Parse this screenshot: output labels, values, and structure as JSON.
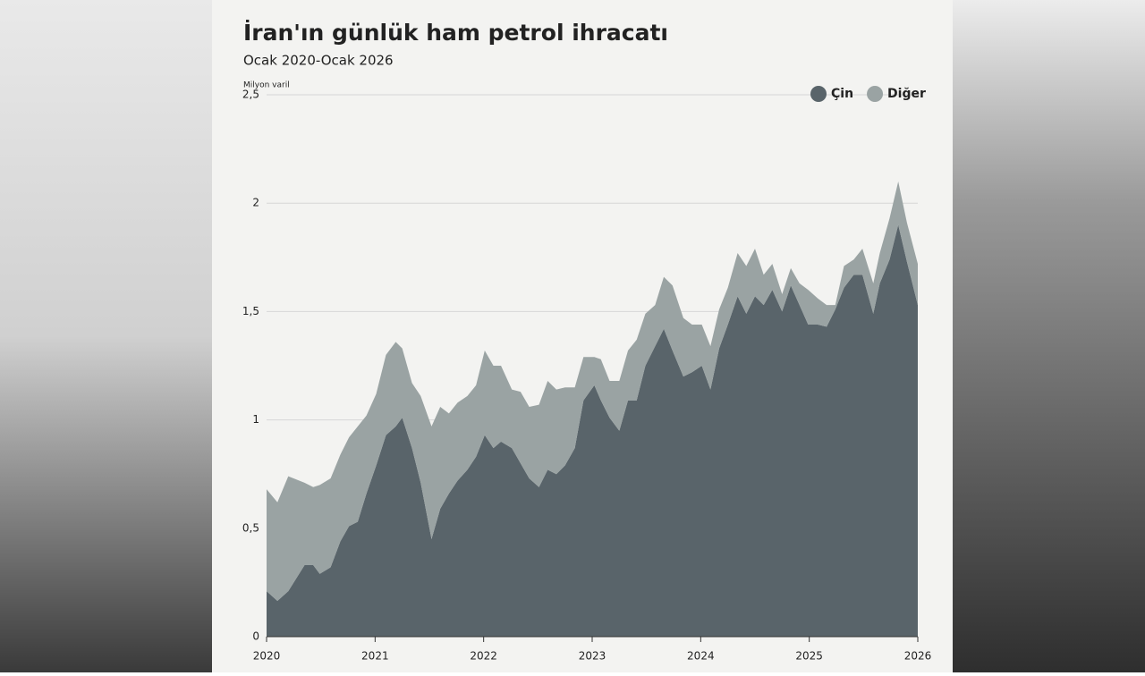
{
  "chart_data": {
    "type": "stacked-area",
    "title": "İran'ın günlük ham petrol ihracatı",
    "subtitle": "Ocak 2020-Ocak 2026",
    "y_label": "Milyon varil",
    "x": [
      2020.0,
      2020.1,
      2020.2,
      2020.35,
      2020.43,
      2020.49,
      2020.59,
      2020.68,
      2020.76,
      2020.84,
      2020.92,
      2021.01,
      2021.1,
      2021.19,
      2021.25,
      2021.34,
      2021.42,
      2021.52,
      2021.6,
      2021.68,
      2021.76,
      2021.85,
      2021.93,
      2022.01,
      2022.09,
      2022.16,
      2022.26,
      2022.34,
      2022.42,
      2022.51,
      2022.59,
      2022.67,
      2022.75,
      2022.84,
      2022.92,
      2023.02,
      2023.08,
      2023.16,
      2023.25,
      2023.33,
      2023.41,
      2023.49,
      2023.58,
      2023.66,
      2023.74,
      2023.84,
      2023.92,
      2024.01,
      2024.09,
      2024.17,
      2024.25,
      2024.34,
      2024.42,
      2024.5,
      2024.58,
      2024.66,
      2024.75,
      2024.83,
      2024.91,
      2024.99,
      2025.08,
      2025.16,
      2025.24,
      2025.32,
      2025.41,
      2025.49,
      2025.59,
      2025.65,
      2025.74,
      2025.82,
      2025.9,
      2026.0
    ],
    "series": [
      {
        "name": "Çin",
        "color": "#59646a",
        "values": [
          0.21,
          0.165,
          0.21,
          0.33,
          0.33,
          0.29,
          0.32,
          0.44,
          0.51,
          0.53,
          0.66,
          0.79,
          0.93,
          0.97,
          1.01,
          0.87,
          0.71,
          0.45,
          0.59,
          0.66,
          0.72,
          0.77,
          0.83,
          0.93,
          0.87,
          0.9,
          0.87,
          0.8,
          0.73,
          0.69,
          0.77,
          0.75,
          0.79,
          0.87,
          1.09,
          1.16,
          1.09,
          1.01,
          0.95,
          1.09,
          1.09,
          1.25,
          1.34,
          1.42,
          1.32,
          1.2,
          1.22,
          1.25,
          1.14,
          1.33,
          1.44,
          1.57,
          1.49,
          1.57,
          1.53,
          1.6,
          1.5,
          1.62,
          1.53,
          1.44,
          1.44,
          1.43,
          1.51,
          1.61,
          1.67,
          1.67,
          1.49,
          1.63,
          1.74,
          1.9,
          1.73,
          1.53
        ]
      },
      {
        "name": "Diğer",
        "color": "#9aa3a3",
        "values": [
          0.47,
          0.455,
          0.53,
          0.38,
          0.36,
          0.41,
          0.41,
          0.4,
          0.41,
          0.44,
          0.36,
          0.33,
          0.37,
          0.39,
          0.32,
          0.3,
          0.4,
          0.52,
          0.47,
          0.37,
          0.36,
          0.34,
          0.33,
          0.39,
          0.38,
          0.35,
          0.27,
          0.33,
          0.33,
          0.38,
          0.41,
          0.39,
          0.36,
          0.28,
          0.2,
          0.13,
          0.19,
          0.17,
          0.23,
          0.23,
          0.28,
          0.24,
          0.19,
          0.24,
          0.3,
          0.27,
          0.22,
          0.19,
          0.2,
          0.18,
          0.17,
          0.2,
          0.22,
          0.22,
          0.14,
          0.12,
          0.08,
          0.08,
          0.1,
          0.16,
          0.12,
          0.1,
          0.02,
          0.1,
          0.07,
          0.12,
          0.14,
          0.14,
          0.19,
          0.2,
          0.18,
          0.19
        ]
      }
    ],
    "xlim": [
      2020,
      2026
    ],
    "xticks": [
      2020,
      2021,
      2022,
      2023,
      2024,
      2025,
      2026
    ],
    "ylim": [
      0,
      2.5
    ],
    "yticks": [
      0,
      {
        "value": 0.5,
        "label": "0,5"
      },
      1,
      {
        "value": 1.5,
        "label": "1,5"
      },
      2,
      {
        "value": 2.5,
        "label": "2,5"
      }
    ],
    "grid": true,
    "legend": "top-right"
  }
}
